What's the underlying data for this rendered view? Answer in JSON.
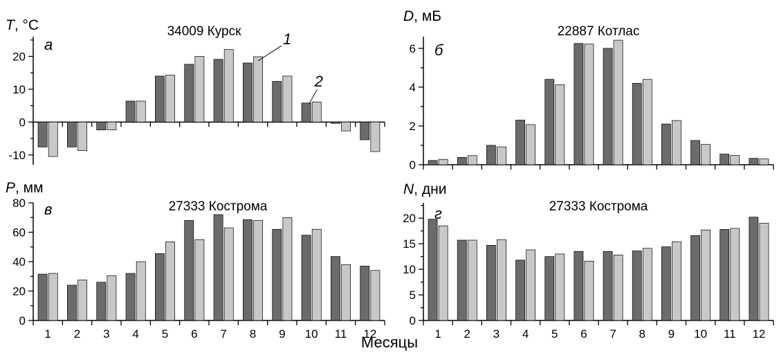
{
  "colors": {
    "series1": "#6b6b6b",
    "series2": "#c8c8c8",
    "bar_edge": "#000000"
  },
  "xlabel": "Месяцы",
  "chart_data": [
    {
      "id": "a",
      "type": "bar",
      "title": "34009 Курск",
      "panel_letter": "а",
      "ylabel_var": "T",
      "ylabel_unit": ", °C",
      "ylim": [
        -13,
        26
      ],
      "yticks": [
        -10,
        0,
        10,
        20
      ],
      "categories": [
        "1",
        "2",
        "3",
        "4",
        "5",
        "6",
        "7",
        "8",
        "9",
        "10",
        "11",
        "12"
      ],
      "show_xtick_labels": false,
      "series": [
        {
          "values": [
            -7.6,
            -7.6,
            -2.4,
            6.4,
            14.0,
            17.6,
            19.1,
            18.0,
            12.4,
            5.8,
            -0.4,
            -5.4
          ]
        },
        {
          "values": [
            -10.5,
            -8.7,
            -2.4,
            6.4,
            14.3,
            20.0,
            22.1,
            19.9,
            14.0,
            6.1,
            -2.7,
            -9.0
          ]
        }
      ],
      "annotations": [
        {
          "text": "1"
        },
        {
          "text": "2"
        }
      ]
    },
    {
      "id": "b",
      "type": "bar",
      "title": "22887 Котлас",
      "panel_letter": "б",
      "ylabel_var": "D",
      "ylabel_unit": ", мБ",
      "ylim": [
        0,
        6.6
      ],
      "yticks": [
        0,
        2,
        4,
        6
      ],
      "categories": [
        "1",
        "2",
        "3",
        "4",
        "5",
        "6",
        "7",
        "8",
        "9",
        "10",
        "11",
        "12"
      ],
      "show_xtick_labels": false,
      "series": [
        {
          "values": [
            0.22,
            0.38,
            1.0,
            2.3,
            4.4,
            6.25,
            6.0,
            4.2,
            2.1,
            1.25,
            0.55,
            0.33
          ]
        },
        {
          "values": [
            0.28,
            0.47,
            0.92,
            2.07,
            4.12,
            6.22,
            6.42,
            4.4,
            2.28,
            1.05,
            0.48,
            0.3
          ]
        }
      ]
    },
    {
      "id": "v",
      "type": "bar",
      "title": "27333 Кострома",
      "panel_letter": "в",
      "ylabel_var": "P",
      "ylabel_unit": ", мм",
      "ylim": [
        0,
        80
      ],
      "yticks": [
        0,
        20,
        40,
        60,
        80
      ],
      "categories": [
        "1",
        "2",
        "3",
        "4",
        "5",
        "6",
        "7",
        "8",
        "9",
        "10",
        "11",
        "12"
      ],
      "show_xtick_labels": true,
      "series": [
        {
          "values": [
            31.5,
            24,
            26,
            32,
            45.5,
            68,
            72,
            68.5,
            62,
            58,
            43.5,
            37
          ]
        },
        {
          "values": [
            32,
            27.5,
            30.5,
            40,
            53.5,
            55,
            63,
            68,
            70,
            62,
            38,
            34
          ]
        }
      ]
    },
    {
      "id": "g",
      "type": "bar",
      "title": "27333 Кострома",
      "panel_letter": "г",
      "ylabel_var": "N",
      "ylabel_unit": ", дни",
      "ylim": [
        0,
        23
      ],
      "yticks": [
        0,
        5,
        10,
        15,
        20
      ],
      "categories": [
        "1",
        "2",
        "3",
        "4",
        "5",
        "6",
        "7",
        "8",
        "9",
        "10",
        "11",
        "12"
      ],
      "show_xtick_labels": true,
      "series": [
        {
          "values": [
            19.8,
            15.7,
            14.7,
            11.8,
            12.5,
            13.5,
            13.5,
            13.6,
            14.4,
            16.6,
            17.8,
            20.2
          ]
        },
        {
          "values": [
            18.5,
            15.7,
            15.8,
            13.8,
            13.0,
            11.6,
            12.8,
            14.1,
            15.4,
            17.7,
            18.0,
            19.0
          ]
        }
      ]
    }
  ]
}
